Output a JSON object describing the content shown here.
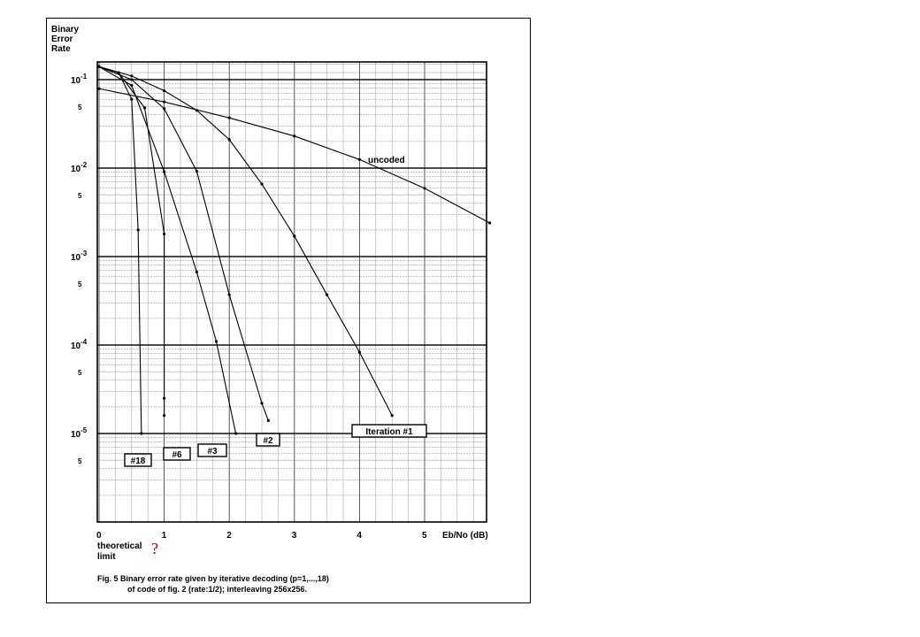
{
  "chart_data": {
    "type": "line",
    "title": "",
    "ylabel": "Binary Error Rate",
    "xlabel": "Eb/No (dB)",
    "yscale": "log",
    "xlim": [
      0,
      6
    ],
    "ylim": [
      1e-06,
      0.2
    ],
    "grid": true,
    "x_ticks": [
      "0",
      "1",
      "2",
      "3",
      "4",
      "5"
    ],
    "y_ticks": [
      {
        "value": 0.1,
        "base": "10",
        "exp": "-1"
      },
      {
        "value": 0.01,
        "base": "10",
        "exp": "-2"
      },
      {
        "value": 0.001,
        "base": "10",
        "exp": "-3"
      },
      {
        "value": 0.0001,
        "base": "10",
        "exp": "-4"
      },
      {
        "value": 1e-05,
        "base": "10",
        "exp": "-5"
      }
    ],
    "y_minor_label": "5",
    "series": [
      {
        "name": "uncoded",
        "points": [
          [
            0,
            0.079
          ],
          [
            1,
            0.056
          ],
          [
            2,
            0.037
          ],
          [
            3,
            0.023
          ],
          [
            4,
            0.0125
          ],
          [
            5,
            0.0059
          ],
          [
            6,
            0.0024
          ]
        ]
      },
      {
        "name": "Iteration #1",
        "points": [
          [
            0,
            0.14
          ],
          [
            0.5,
            0.11
          ],
          [
            1,
            0.075
          ],
          [
            1.5,
            0.045
          ],
          [
            2,
            0.021
          ],
          [
            2.5,
            0.0066
          ],
          [
            3,
            0.0017
          ],
          [
            3.5,
            0.00037
          ],
          [
            4,
            8.3e-05
          ],
          [
            4.5,
            1.6e-05
          ]
        ]
      },
      {
        "name": "#2",
        "points": [
          [
            0,
            0.14
          ],
          [
            0.5,
            0.1
          ],
          [
            1,
            0.047
          ],
          [
            1.5,
            0.0092
          ],
          [
            2,
            0.00037
          ],
          [
            2.5,
            2.2e-05
          ],
          [
            2.6,
            1.4e-05
          ]
        ]
      },
      {
        "name": "#3",
        "points": [
          [
            0,
            0.14
          ],
          [
            0.5,
            0.086
          ],
          [
            1,
            0.0091
          ],
          [
            1.5,
            0.00067
          ],
          [
            1.8,
            0.00011
          ],
          [
            2.1,
            1e-05
          ]
        ]
      },
      {
        "name": "#6",
        "points": [
          [
            0,
            0.14
          ],
          [
            0.3,
            0.12
          ],
          [
            0.7,
            0.048
          ],
          [
            1,
            0.0018
          ],
          [
            1.0,
            2.5e-05
          ],
          [
            1.0,
            1.6e-05
          ]
        ]
      },
      {
        "name": "#18",
        "points": [
          [
            0,
            0.14
          ],
          [
            0.3,
            0.12
          ],
          [
            0.5,
            0.06
          ],
          [
            0.6,
            0.002
          ],
          [
            0.65,
            1e-05
          ]
        ]
      }
    ],
    "annotations": [
      {
        "text": "uncoded"
      },
      {
        "text": "Iteration #1"
      },
      {
        "text": "#2"
      },
      {
        "text": "#3"
      },
      {
        "text": "#6"
      },
      {
        "text": "#18"
      }
    ]
  },
  "axis_y_title_lines": [
    "Binary",
    "Error",
    "Rate"
  ],
  "theoretical_limit_lines": [
    "theoretical",
    "limit"
  ],
  "question_mark": "?",
  "caption_lines": [
    "Fig. 5  Binary error rate given by iterative decoding (p=1,...,18)",
    "of code of fig. 2 (rate:1/2); interleaving 256x256."
  ]
}
